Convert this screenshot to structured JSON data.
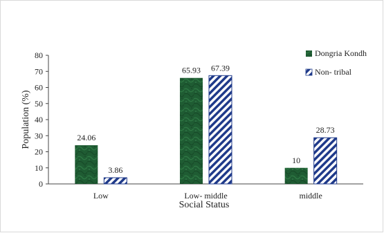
{
  "chart_data": {
    "type": "bar",
    "categories": [
      "Low",
      "Low- middle",
      "middle"
    ],
    "series": [
      {
        "name": "Dongria Kondh",
        "values": [
          24.06,
          65.93,
          10
        ],
        "labels": [
          "24.06",
          "65.93",
          "10"
        ],
        "color": "#1f5c33",
        "fill": "green-marble"
      },
      {
        "name": "Non- tribal",
        "values": [
          3.86,
          67.39,
          28.73
        ],
        "labels": [
          "3.86",
          "67.39",
          "28.73"
        ],
        "color": "#1f3a8a",
        "fill": "diagonal-stripes"
      }
    ],
    "xlabel": "Social Status",
    "ylabel": "Population (%)",
    "ylim": [
      0,
      80
    ],
    "yticks": [
      "0",
      "10",
      "20",
      "30",
      "40",
      "50",
      "60",
      "70",
      "80"
    ],
    "grid": false,
    "legend_position": "right"
  }
}
